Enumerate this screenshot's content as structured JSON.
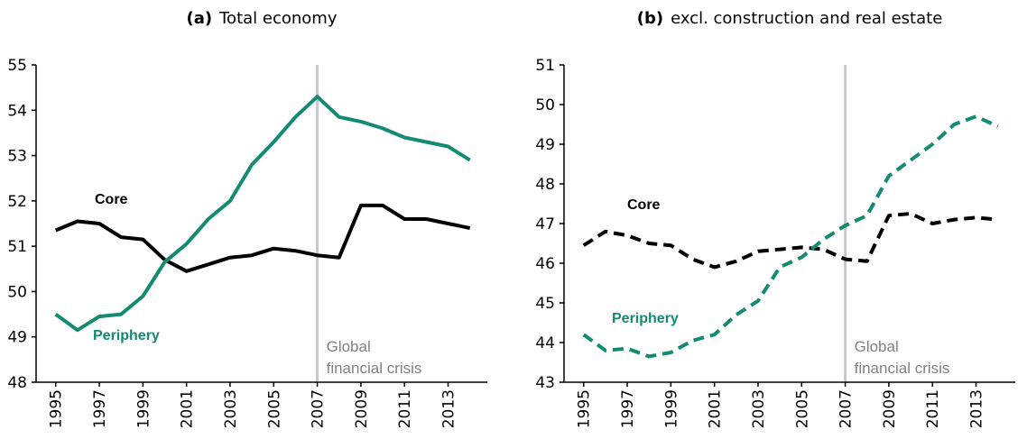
{
  "chart_data": [
    {
      "type": "line",
      "panel": "(a)",
      "title": "Total economy",
      "x": [
        1995,
        1996,
        1997,
        1998,
        1999,
        2000,
        2001,
        2002,
        2003,
        2004,
        2005,
        2006,
        2007,
        2008,
        2009,
        2010,
        2011,
        2012,
        2013,
        2014
      ],
      "series": [
        {
          "name": "Core",
          "color": "#000000",
          "values": [
            51.35,
            51.55,
            51.5,
            51.2,
            51.15,
            50.7,
            50.45,
            50.6,
            50.75,
            50.8,
            50.95,
            50.9,
            50.8,
            50.75,
            51.9,
            51.9,
            51.6,
            51.6,
            51.5,
            51.4
          ]
        },
        {
          "name": "Periphery",
          "color": "#138a72",
          "values": [
            49.5,
            49.15,
            49.45,
            49.5,
            49.9,
            50.65,
            51.05,
            51.6,
            52.0,
            52.8,
            53.3,
            53.85,
            54.3,
            53.85,
            53.75,
            53.6,
            53.4,
            53.3,
            53.2,
            52.9
          ]
        }
      ],
      "dashed": false,
      "xlim": [
        1994.1,
        2014.8
      ],
      "xticks": [
        1995,
        1997,
        1999,
        2001,
        2003,
        2005,
        2007,
        2009,
        2011,
        2013
      ],
      "ylim": [
        48,
        55
      ],
      "yticks": [
        48,
        49,
        50,
        51,
        52,
        53,
        54,
        55
      ],
      "vline": 2007,
      "vline_label": [
        "Global",
        "financial crisis"
      ]
    },
    {
      "type": "line",
      "panel": "(b)",
      "title": "excl. construction and real estate",
      "x": [
        1995,
        1996,
        1997,
        1998,
        1999,
        2000,
        2001,
        2002,
        2003,
        2004,
        2005,
        2006,
        2007,
        2008,
        2009,
        2010,
        2011,
        2012,
        2013,
        2014
      ],
      "series": [
        {
          "name": "Core",
          "color": "#000000",
          "values": [
            46.45,
            46.8,
            46.7,
            46.5,
            46.45,
            46.1,
            45.9,
            46.05,
            46.3,
            46.35,
            46.4,
            46.35,
            46.1,
            46.05,
            47.2,
            47.25,
            47.0,
            47.1,
            47.15,
            47.1
          ]
        },
        {
          "name": "Periphery",
          "color": "#138a72",
          "values": [
            44.2,
            43.8,
            43.85,
            43.65,
            43.75,
            44.05,
            44.2,
            44.7,
            45.05,
            45.9,
            46.15,
            46.6,
            46.95,
            47.2,
            48.2,
            48.6,
            49.0,
            49.5,
            49.7,
            49.45
          ]
        }
      ],
      "dashed": true,
      "xlim": [
        1994.1,
        2014.8
      ],
      "xticks": [
        1995,
        1997,
        1999,
        2001,
        2003,
        2005,
        2007,
        2009,
        2011,
        2013
      ],
      "ylim": [
        43,
        51
      ],
      "yticks": [
        43,
        44,
        45,
        46,
        47,
        48,
        49,
        50,
        51
      ],
      "vline": 2007,
      "vline_label": [
        "Global",
        "financial crisis"
      ]
    }
  ]
}
